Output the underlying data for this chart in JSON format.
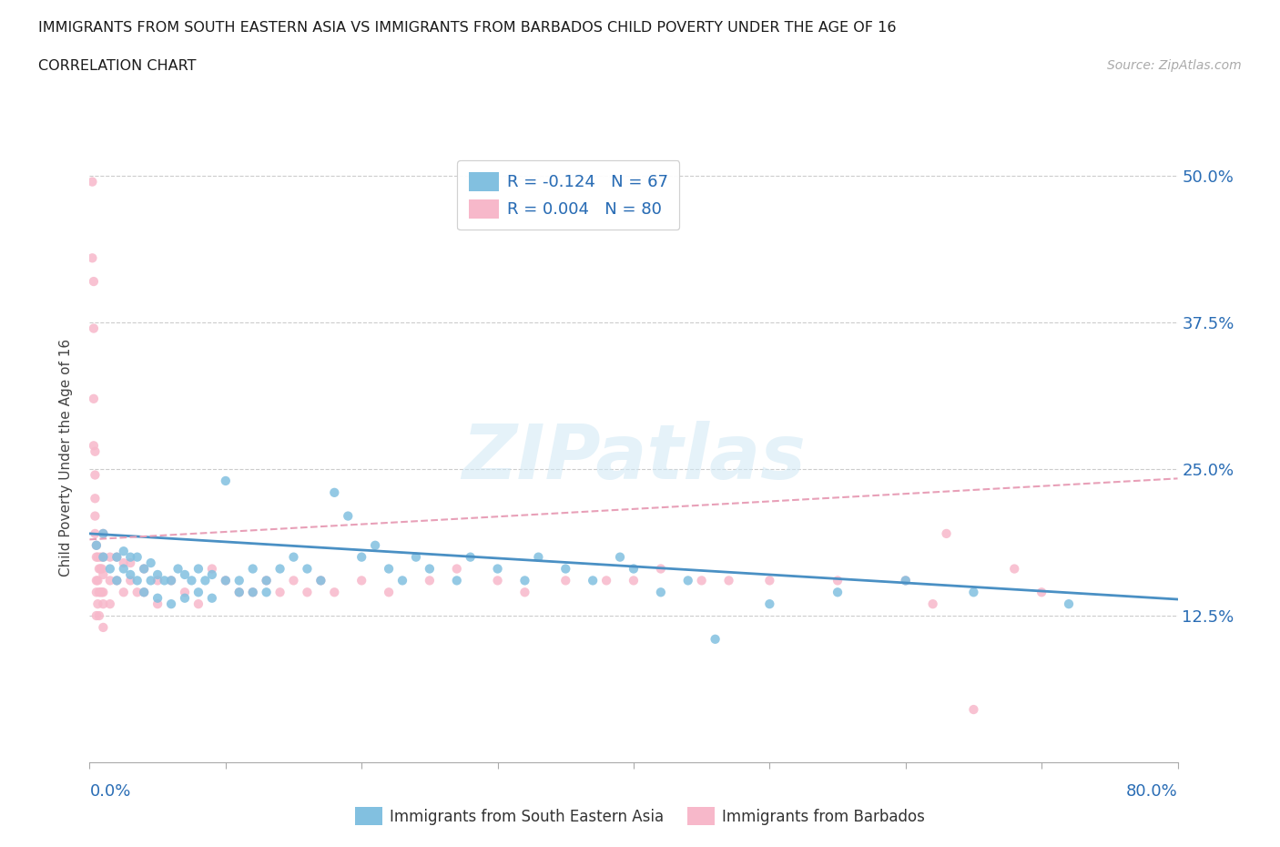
{
  "title": "IMMIGRANTS FROM SOUTH EASTERN ASIA VS IMMIGRANTS FROM BARBADOS CHILD POVERTY UNDER THE AGE OF 16",
  "subtitle": "CORRELATION CHART",
  "source": "Source: ZipAtlas.com",
  "ylabel": "Child Poverty Under the Age of 16",
  "color_blue": "#82c0e0",
  "color_pink": "#f7b8ca",
  "color_blue_line": "#4a90c4",
  "color_pink_line": "#e8a0b8",
  "color_blue_dark": "#2a6db5",
  "watermark": "ZIPatlas",
  "legend1_label": "R = -0.124   N = 67",
  "legend2_label": "R = 0.004   N = 80",
  "legend_bottom1": "Immigrants from South Eastern Asia",
  "legend_bottom2": "Immigrants from Barbados",
  "blue_trend": [
    -0.07,
    0.195
  ],
  "pink_trend": [
    0.065,
    0.19
  ],
  "blue_x": [
    0.005,
    0.01,
    0.01,
    0.015,
    0.02,
    0.02,
    0.025,
    0.025,
    0.03,
    0.03,
    0.035,
    0.035,
    0.04,
    0.04,
    0.045,
    0.045,
    0.05,
    0.05,
    0.055,
    0.06,
    0.06,
    0.065,
    0.07,
    0.07,
    0.075,
    0.08,
    0.08,
    0.085,
    0.09,
    0.09,
    0.1,
    0.1,
    0.11,
    0.11,
    0.12,
    0.12,
    0.13,
    0.13,
    0.14,
    0.15,
    0.16,
    0.17,
    0.18,
    0.19,
    0.2,
    0.21,
    0.22,
    0.23,
    0.24,
    0.25,
    0.27,
    0.28,
    0.3,
    0.32,
    0.33,
    0.35,
    0.37,
    0.39,
    0.4,
    0.42,
    0.44,
    0.46,
    0.5,
    0.55,
    0.6,
    0.65,
    0.72
  ],
  "blue_y": [
    0.185,
    0.175,
    0.195,
    0.165,
    0.155,
    0.175,
    0.165,
    0.18,
    0.16,
    0.175,
    0.155,
    0.175,
    0.145,
    0.165,
    0.155,
    0.17,
    0.14,
    0.16,
    0.155,
    0.135,
    0.155,
    0.165,
    0.14,
    0.16,
    0.155,
    0.145,
    0.165,
    0.155,
    0.14,
    0.16,
    0.24,
    0.155,
    0.145,
    0.155,
    0.145,
    0.165,
    0.145,
    0.155,
    0.165,
    0.175,
    0.165,
    0.155,
    0.23,
    0.21,
    0.175,
    0.185,
    0.165,
    0.155,
    0.175,
    0.165,
    0.155,
    0.175,
    0.165,
    0.155,
    0.175,
    0.165,
    0.155,
    0.175,
    0.165,
    0.145,
    0.155,
    0.105,
    0.135,
    0.145,
    0.155,
    0.145,
    0.135
  ],
  "pink_x": [
    0.002,
    0.002,
    0.003,
    0.003,
    0.003,
    0.003,
    0.004,
    0.004,
    0.004,
    0.004,
    0.004,
    0.005,
    0.005,
    0.005,
    0.005,
    0.005,
    0.006,
    0.006,
    0.006,
    0.007,
    0.007,
    0.007,
    0.008,
    0.008,
    0.008,
    0.009,
    0.009,
    0.01,
    0.01,
    0.01,
    0.01,
    0.01,
    0.01,
    0.015,
    0.015,
    0.015,
    0.02,
    0.02,
    0.025,
    0.025,
    0.03,
    0.03,
    0.035,
    0.04,
    0.04,
    0.05,
    0.05,
    0.06,
    0.07,
    0.08,
    0.09,
    0.1,
    0.11,
    0.12,
    0.13,
    0.14,
    0.15,
    0.16,
    0.17,
    0.18,
    0.2,
    0.22,
    0.25,
    0.27,
    0.3,
    0.32,
    0.35,
    0.38,
    0.4,
    0.42,
    0.45,
    0.47,
    0.5,
    0.55,
    0.6,
    0.63,
    0.65,
    0.68,
    0.7,
    0.62
  ],
  "pink_y": [
    0.495,
    0.43,
    0.41,
    0.37,
    0.31,
    0.27,
    0.265,
    0.245,
    0.225,
    0.21,
    0.195,
    0.185,
    0.175,
    0.155,
    0.145,
    0.125,
    0.175,
    0.155,
    0.135,
    0.165,
    0.145,
    0.125,
    0.175,
    0.165,
    0.145,
    0.165,
    0.145,
    0.195,
    0.175,
    0.16,
    0.145,
    0.135,
    0.115,
    0.175,
    0.155,
    0.135,
    0.175,
    0.155,
    0.17,
    0.145,
    0.17,
    0.155,
    0.145,
    0.165,
    0.145,
    0.155,
    0.135,
    0.155,
    0.145,
    0.135,
    0.165,
    0.155,
    0.145,
    0.145,
    0.155,
    0.145,
    0.155,
    0.145,
    0.155,
    0.145,
    0.155,
    0.145,
    0.155,
    0.165,
    0.155,
    0.145,
    0.155,
    0.155,
    0.155,
    0.165,
    0.155,
    0.155,
    0.155,
    0.155,
    0.155,
    0.195,
    0.045,
    0.165,
    0.145,
    0.135
  ]
}
